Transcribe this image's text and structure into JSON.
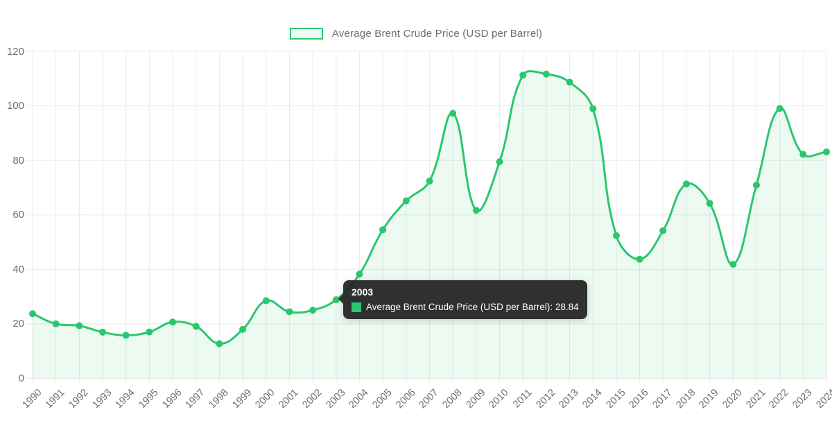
{
  "legend": {
    "label": "Average Brent Crude Price (USD per Barrel)"
  },
  "tooltip": {
    "title": "2003",
    "series_label": "Average Brent Crude Price (USD per Barrel)",
    "value": "28.84",
    "label": "Average Brent Crude Price (USD per Barrel): 28.84"
  },
  "colors": {
    "line": "#2bc76d",
    "point": "#2bc76d",
    "area_fill": "rgba(43,199,109,0.09)",
    "legend_swatch_fill": "rgba(43,199,109,0.08)",
    "grid": "#e8ebe9",
    "tick_text": "#6b706e",
    "tooltip_bg": "rgba(35,35,35,0.94)",
    "tooltip_text": "#ffffff"
  },
  "chart_data": {
    "type": "line",
    "title": "",
    "xlabel": "",
    "ylabel": "",
    "x": [
      1990,
      1991,
      1992,
      1993,
      1994,
      1995,
      1996,
      1997,
      1998,
      1999,
      2000,
      2001,
      2002,
      2003,
      2004,
      2005,
      2006,
      2007,
      2008,
      2009,
      2010,
      2011,
      2012,
      2013,
      2014,
      2015,
      2016,
      2017,
      2018,
      2019,
      2020,
      2021,
      2022,
      2023,
      2024
    ],
    "series": [
      {
        "name": "Average Brent Crude Price (USD per Barrel)",
        "values": [
          23.73,
          20.0,
          19.32,
          16.97,
          15.82,
          17.02,
          20.67,
          19.09,
          12.72,
          17.97,
          28.5,
          24.44,
          25.02,
          28.84,
          38.27,
          54.52,
          65.14,
          72.39,
          97.26,
          61.67,
          79.5,
          111.26,
          111.67,
          108.66,
          98.95,
          52.39,
          43.73,
          54.19,
          71.31,
          64.21,
          41.84,
          70.91,
          99.02,
          82.17,
          83.1
        ]
      }
    ],
    "ylim": [
      0,
      120
    ],
    "yticks": [
      0,
      20,
      40,
      60,
      80,
      100,
      120
    ],
    "grid": true,
    "legend_position": "top-center",
    "area_fill": true,
    "point_style": "circle",
    "line_tension": 0.4,
    "highlighted_point": {
      "x": 2003,
      "value": 28.84
    }
  }
}
